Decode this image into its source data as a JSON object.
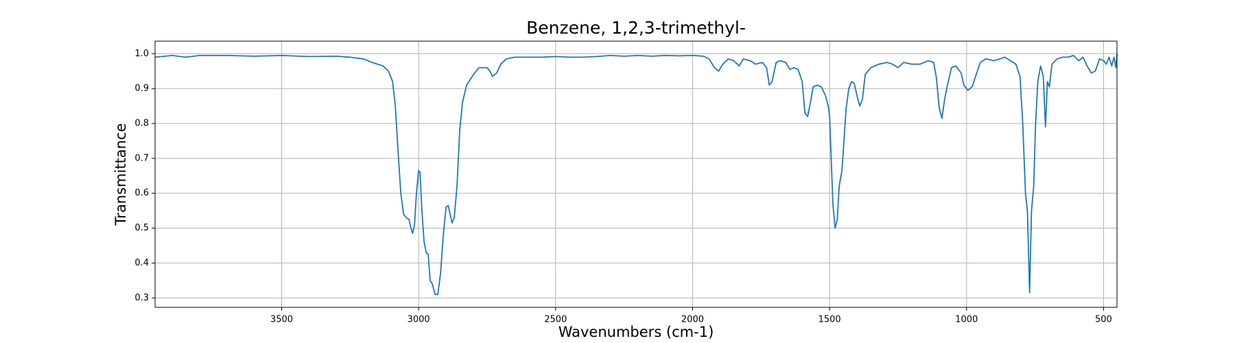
{
  "chart_data": {
    "type": "line",
    "title": "Benzene, 1,2,3-trimethyl-",
    "x_label": "Wavenumbers (cm-1)",
    "y_label": "Transmittance",
    "color": "#1f77b4",
    "grid": true,
    "xlim": [
      3962,
      451
    ],
    "ylim": [
      0.273,
      1.036
    ],
    "xticks": [
      3500,
      3000,
      2500,
      2000,
      1500,
      1000,
      500
    ],
    "yticks": [
      0.3,
      0.4,
      0.5,
      0.6,
      0.7,
      0.8,
      0.9,
      {
        "value": 1.0,
        "label": "1.0"
      }
    ],
    "x": [
      3962,
      3900,
      3850,
      3800,
      3700,
      3600,
      3500,
      3400,
      3300,
      3250,
      3200,
      3170,
      3130,
      3110,
      3095,
      3085,
      3075,
      3065,
      3055,
      3045,
      3035,
      3028,
      3022,
      3015,
      3008,
      3000,
      2995,
      2988,
      2980,
      2972,
      2965,
      2958,
      2950,
      2940,
      2930,
      2920,
      2910,
      2900,
      2892,
      2885,
      2878,
      2870,
      2860,
      2850,
      2840,
      2825,
      2800,
      2780,
      2750,
      2740,
      2730,
      2715,
      2700,
      2680,
      2650,
      2600,
      2550,
      2500,
      2450,
      2400,
      2350,
      2300,
      2250,
      2200,
      2150,
      2100,
      2050,
      2000,
      1960,
      1940,
      1920,
      1905,
      1890,
      1870,
      1850,
      1830,
      1815,
      1790,
      1770,
      1745,
      1730,
      1720,
      1710,
      1695,
      1680,
      1660,
      1645,
      1630,
      1615,
      1600,
      1590,
      1580,
      1570,
      1560,
      1545,
      1530,
      1515,
      1505,
      1500,
      1495,
      1488,
      1480,
      1472,
      1465,
      1455,
      1450,
      1440,
      1430,
      1420,
      1410,
      1400,
      1390,
      1380,
      1370,
      1350,
      1320,
      1290,
      1270,
      1250,
      1230,
      1200,
      1170,
      1140,
      1120,
      1110,
      1100,
      1090,
      1080,
      1070,
      1055,
      1040,
      1020,
      1010,
      995,
      980,
      965,
      950,
      930,
      900,
      880,
      860,
      840,
      820,
      805,
      795,
      785,
      778,
      770,
      763,
      755,
      748,
      740,
      730,
      720,
      712,
      705,
      698,
      688,
      670,
      650,
      630,
      610,
      590,
      575,
      560,
      545,
      530,
      515,
      500,
      490,
      480,
      470,
      462,
      455,
      451
    ],
    "values": [
      0.99,
      0.995,
      0.99,
      0.995,
      0.995,
      0.993,
      0.995,
      0.992,
      0.993,
      0.99,
      0.985,
      0.975,
      0.965,
      0.95,
      0.92,
      0.85,
      0.72,
      0.6,
      0.54,
      0.53,
      0.525,
      0.5,
      0.485,
      0.51,
      0.6,
      0.665,
      0.66,
      0.55,
      0.46,
      0.43,
      0.425,
      0.35,
      0.34,
      0.31,
      0.31,
      0.37,
      0.48,
      0.56,
      0.565,
      0.54,
      0.515,
      0.53,
      0.62,
      0.78,
      0.86,
      0.91,
      0.94,
      0.96,
      0.96,
      0.95,
      0.935,
      0.945,
      0.97,
      0.985,
      0.99,
      0.99,
      0.99,
      0.992,
      0.99,
      0.99,
      0.992,
      0.995,
      0.993,
      0.995,
      0.993,
      0.995,
      0.994,
      0.995,
      0.993,
      0.985,
      0.96,
      0.95,
      0.97,
      0.985,
      0.98,
      0.965,
      0.985,
      0.98,
      0.97,
      0.975,
      0.96,
      0.91,
      0.92,
      0.975,
      0.98,
      0.975,
      0.955,
      0.96,
      0.955,
      0.92,
      0.83,
      0.82,
      0.86,
      0.905,
      0.91,
      0.905,
      0.88,
      0.85,
      0.82,
      0.72,
      0.57,
      0.5,
      0.525,
      0.62,
      0.665,
      0.72,
      0.84,
      0.9,
      0.92,
      0.915,
      0.88,
      0.85,
      0.87,
      0.94,
      0.96,
      0.97,
      0.975,
      0.97,
      0.96,
      0.975,
      0.97,
      0.97,
      0.98,
      0.975,
      0.93,
      0.845,
      0.815,
      0.87,
      0.91,
      0.96,
      0.965,
      0.945,
      0.91,
      0.895,
      0.905,
      0.94,
      0.975,
      0.985,
      0.98,
      0.985,
      0.99,
      0.98,
      0.97,
      0.935,
      0.8,
      0.6,
      0.55,
      0.315,
      0.55,
      0.62,
      0.8,
      0.92,
      0.965,
      0.935,
      0.79,
      0.92,
      0.905,
      0.97,
      0.985,
      0.99,
      0.99,
      0.995,
      0.98,
      0.99,
      0.965,
      0.945,
      0.95,
      0.985,
      0.98,
      0.97,
      0.99,
      0.965,
      0.99,
      0.96,
      1.0
    ]
  }
}
